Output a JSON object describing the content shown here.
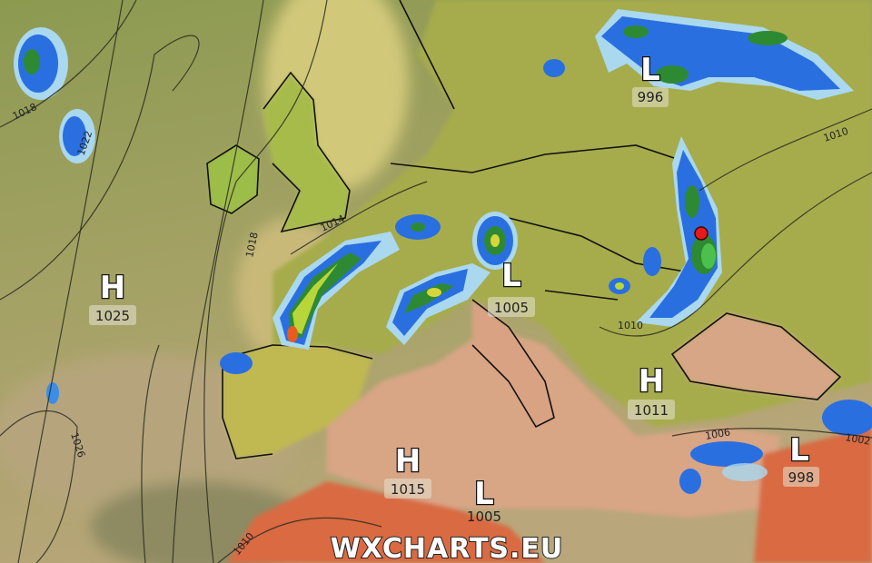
{
  "watermark": "WXCHARTS.EU",
  "colors": {
    "atlantic": "#9aa05c",
    "land": "#a8ad4c",
    "mediterranean": "#d9a383",
    "africa": "#d9623e",
    "precip_light": "#a9d8ef",
    "precip_blue": "#2a6fe0",
    "precip_dark": "#1a2fb8",
    "precip_green": "#2e8a32",
    "marker": "#e51a1a"
  },
  "pressure_centres": [
    {
      "type": "H",
      "value": "1025"
    },
    {
      "type": "L",
      "value": "996"
    },
    {
      "type": "L",
      "value": "1005"
    },
    {
      "type": "H",
      "value": "1011"
    },
    {
      "type": "H",
      "value": "1015"
    },
    {
      "type": "L",
      "value": "998"
    },
    {
      "type": "L",
      "value": "1005"
    }
  ],
  "isobar_labels": [
    "1018",
    "1022",
    "1018",
    "1014",
    "1010",
    "1010",
    "1006",
    "1002",
    "1026",
    "1010"
  ],
  "marker": {
    "icon": "location-dot-icon"
  }
}
